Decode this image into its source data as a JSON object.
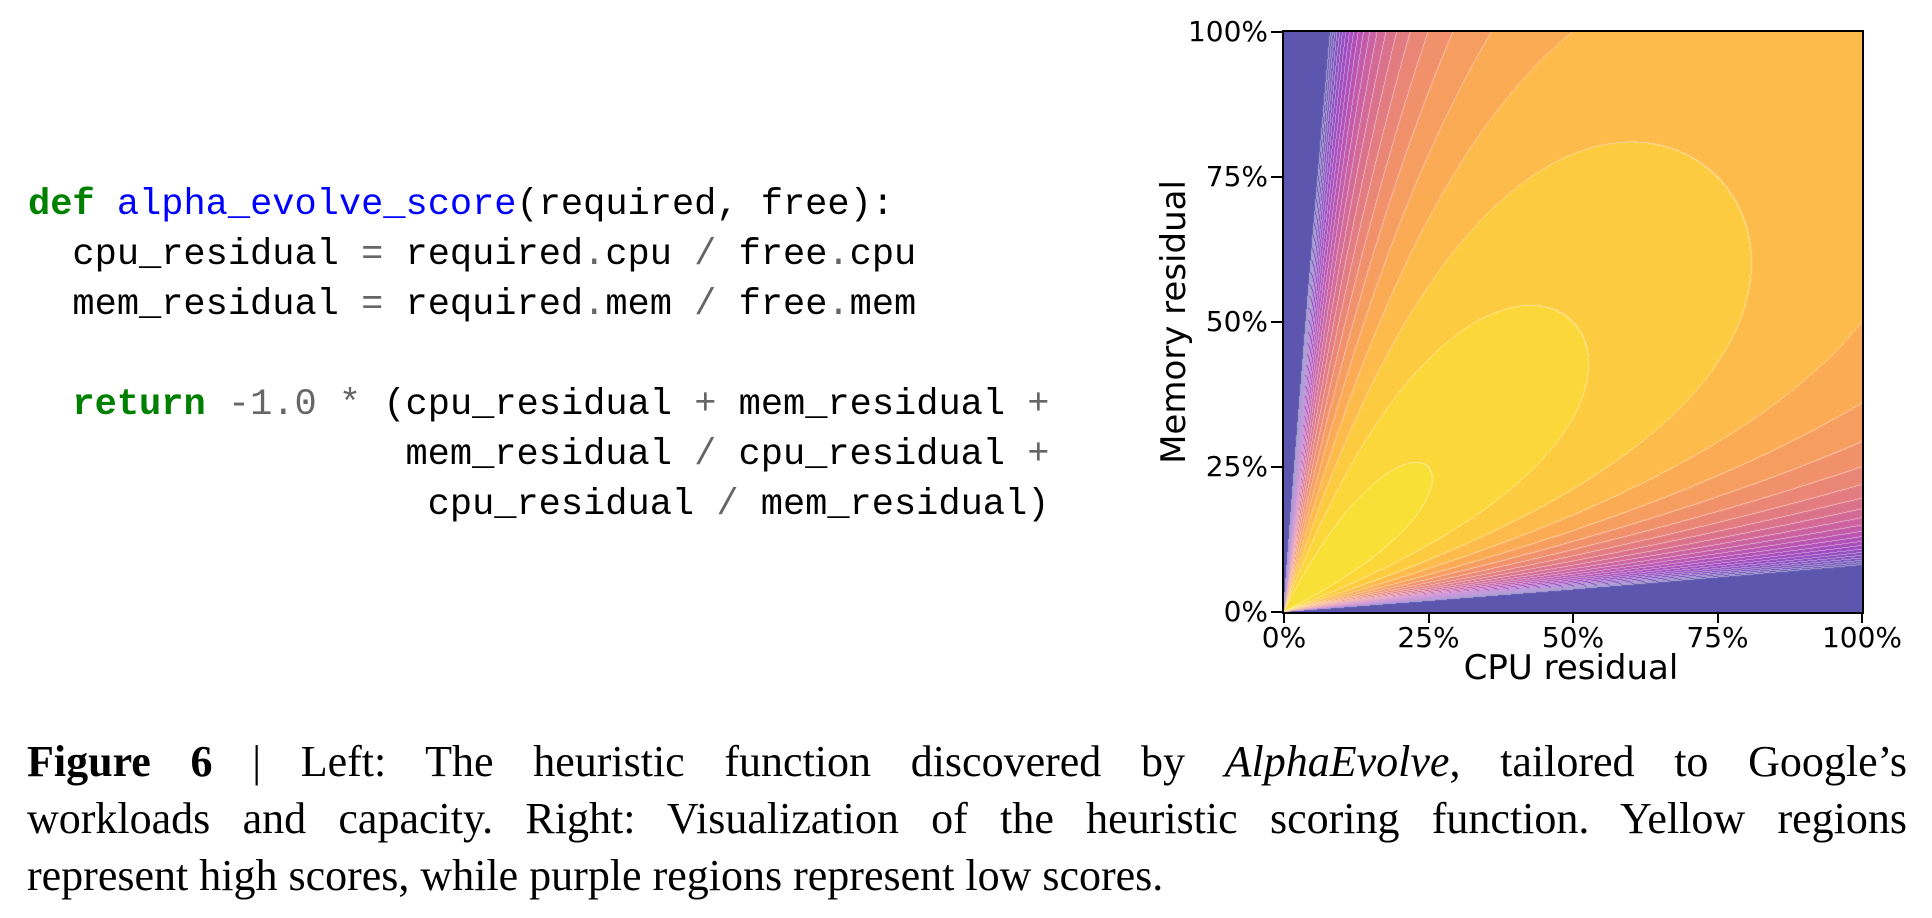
{
  "code_panel": {
    "language": "python",
    "token_styles": {
      "k": {
        "color": "#008000",
        "bold": true
      },
      "f": {
        "color": "#0000ff",
        "bold": false
      },
      "o": {
        "color": "#666666",
        "bold": false
      },
      "p": {
        "color": "#000000",
        "bold": false
      }
    },
    "lines": [
      [
        [
          "def",
          "k"
        ],
        [
          " ",
          "p"
        ],
        [
          "alpha_evolve_score",
          "f"
        ],
        [
          "(required, free):",
          "p"
        ]
      ],
      [
        [
          "  cpu_residual ",
          "p"
        ],
        [
          "=",
          "o"
        ],
        [
          " required",
          "p"
        ],
        [
          ".",
          "o"
        ],
        [
          "cpu ",
          "p"
        ],
        [
          "/",
          "o"
        ],
        [
          " free",
          "p"
        ],
        [
          ".",
          "o"
        ],
        [
          "cpu",
          "p"
        ]
      ],
      [
        [
          "  mem_residual ",
          "p"
        ],
        [
          "=",
          "o"
        ],
        [
          " required",
          "p"
        ],
        [
          ".",
          "o"
        ],
        [
          "mem ",
          "p"
        ],
        [
          "/",
          "o"
        ],
        [
          " free",
          "p"
        ],
        [
          ".",
          "o"
        ],
        [
          "mem",
          "p"
        ]
      ],
      [],
      [
        [
          "  ",
          "p"
        ],
        [
          "return",
          "k"
        ],
        [
          " ",
          "p"
        ],
        [
          "-1.0",
          "o"
        ],
        [
          " ",
          "p"
        ],
        [
          "*",
          "o"
        ],
        [
          " (cpu_residual ",
          "p"
        ],
        [
          "+",
          "o"
        ],
        [
          " mem_residual ",
          "p"
        ],
        [
          "+",
          "o"
        ]
      ],
      [
        [
          "                 mem_residual ",
          "p"
        ],
        [
          "/",
          "o"
        ],
        [
          " cpu_residual ",
          "p"
        ],
        [
          "+",
          "o"
        ]
      ],
      [
        [
          "                  cpu_residual ",
          "p"
        ],
        [
          "/",
          "o"
        ],
        [
          " mem_residual)",
          "p"
        ]
      ]
    ]
  },
  "chart_data": {
    "type": "heatmap",
    "subtype": "filled_contour",
    "function": "-(x + y + y/x + x/y)",
    "x": {
      "label": "CPU residual",
      "range": [
        0,
        1
      ],
      "tick_positions": [
        0,
        0.25,
        0.5,
        0.75,
        1
      ],
      "ticks": [
        "0%",
        "25%",
        "50%",
        "75%",
        "100%"
      ]
    },
    "y": {
      "label": "Memory residual",
      "range": [
        0,
        1
      ],
      "tick_positions": [
        0,
        0.25,
        0.5,
        0.75,
        1
      ],
      "ticks": [
        "0%",
        "25%",
        "50%",
        "75%",
        "100%"
      ]
    },
    "levels": {
      "min": -14,
      "max": -1,
      "step": 0.5
    },
    "colormap": {
      "name": "plasma",
      "gamma": 1.25,
      "alpha_min": 0.68,
      "alpha_max": 0.95,
      "stops": [
        "#0d0887",
        "#46039f",
        "#7201a8",
        "#9c179e",
        "#bd3786",
        "#d8576b",
        "#ed7953",
        "#fb9f3a",
        "#fdca26",
        "#f7e225",
        "#f0f921"
      ]
    },
    "contour_line": {
      "color": "#ffffff",
      "mix": 0.45
    },
    "notes": "Yellow = high score, purple/blue = low score; bands converge at origin",
    "grid": false,
    "legend": "none"
  },
  "caption": {
    "lines": [
      [
        {
          "t": "Figure 6",
          "s": "bold"
        },
        {
          "t": " | Left: The heuristic function discovered by ",
          "s": "plain"
        },
        {
          "t": "AlphaEvolve",
          "s": "italic"
        },
        {
          "t": ", tailored to Google’s",
          "s": "plain"
        }
      ],
      [
        {
          "t": "workloads and capacity. Right: Visualization of the heuristic scoring function. Yellow regions",
          "s": "plain"
        }
      ],
      [
        {
          "t": "represent high scores, while purple regions represent low scores.",
          "s": "plain"
        }
      ]
    ]
  }
}
